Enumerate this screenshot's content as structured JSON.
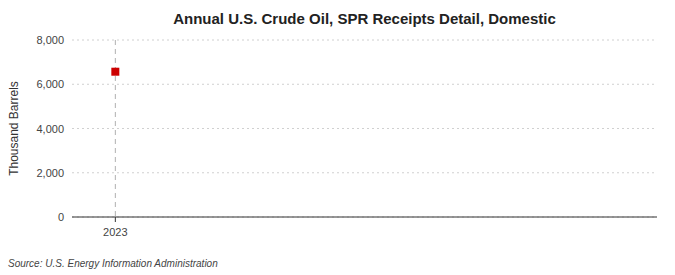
{
  "chart_data": {
    "type": "scatter",
    "title": "Annual U.S. Crude Oil, SPR Receipts Detail, Domestic",
    "y_label": "Thousand Barrels",
    "annotations": [
      "Source: U.S. Energy Information Administration"
    ],
    "x": [
      2023
    ],
    "values": [
      6567
    ],
    "color": "#cc0000",
    "marker": "square",
    "xlim": [
      2022.88,
      2024.5
    ],
    "xticks": [
      2023
    ],
    "ylim": [
      0,
      8000
    ],
    "yticks": [
      0,
      {
        "value": 2000,
        "label": "2,000"
      },
      {
        "value": 4000,
        "label": "4,000"
      },
      {
        "value": 6000,
        "label": "6,000"
      },
      {
        "value": 8000,
        "label": "8,000"
      }
    ],
    "grid": true
  }
}
